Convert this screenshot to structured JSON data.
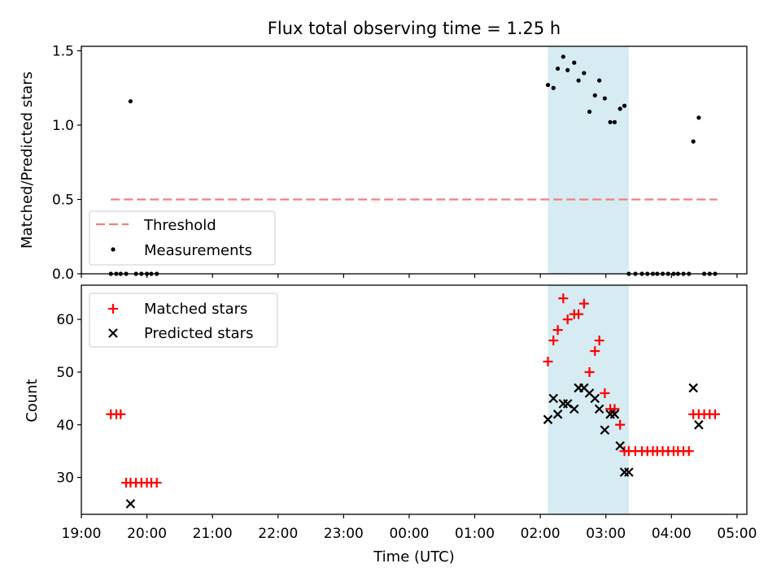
{
  "title": "Flux total observing time = 1.25 h",
  "chart_data": [
    {
      "type": "scatter",
      "panel": "top",
      "ylabel": "Matched/Predicted stars",
      "ylim": [
        0,
        1.53
      ],
      "yticks": [
        0.0,
        0.5,
        1.0,
        1.5
      ],
      "ytick_labels": [
        "0.0",
        "0.5",
        "1.0",
        "1.5"
      ],
      "x_is_time": true,
      "xlim": [
        "19:00",
        "05:09"
      ],
      "highlight_span": [
        "02:07",
        "03:21"
      ],
      "threshold": {
        "name": "Threshold",
        "value": 0.5,
        "x_range": [
          "19:27",
          "04:42"
        ],
        "color": "#f08080"
      },
      "measurements": {
        "name": "Measurements",
        "color": "#000000",
        "x": [
          "19:27",
          "19:32",
          "19:36",
          "19:41",
          "19:45",
          "19:50",
          "19:55",
          "20:00",
          "20:04",
          "20:09",
          "02:07",
          "02:12",
          "02:16",
          "02:21",
          "02:25",
          "02:31",
          "02:35",
          "02:40",
          "02:45",
          "02:50",
          "02:54",
          "02:59",
          "03:04",
          "03:08",
          "03:13",
          "03:17",
          "03:21",
          "03:27",
          "03:33",
          "03:38",
          "03:43",
          "03:47",
          "03:52",
          "03:57",
          "04:02",
          "04:06",
          "04:11",
          "04:16",
          "04:20",
          "04:25",
          "04:30",
          "04:35",
          "04:40"
        ],
        "y": [
          0,
          0,
          0,
          0,
          1.16,
          0,
          0,
          0,
          0,
          0,
          1.27,
          1.25,
          1.38,
          1.46,
          1.37,
          1.42,
          1.3,
          1.35,
          1.09,
          1.2,
          1.3,
          1.18,
          1.02,
          1.02,
          1.11,
          1.13,
          0,
          0,
          0,
          0,
          0,
          0,
          0,
          0,
          0,
          0,
          0,
          0,
          0.89,
          1.05,
          0,
          0,
          0
        ]
      },
      "legend": {
        "location": "lower left",
        "entries": [
          "Threshold",
          "Measurements"
        ]
      }
    },
    {
      "type": "scatter",
      "panel": "bottom",
      "xlabel": "Time (UTC)",
      "ylabel": "Count",
      "ylim": [
        23,
        66.5
      ],
      "yticks": [
        30,
        40,
        50,
        60
      ],
      "ytick_labels": [
        "30",
        "40",
        "50",
        "60"
      ],
      "x_is_time": true,
      "xlim": [
        "19:00",
        "05:09"
      ],
      "xticks": [
        "19:00",
        "20:00",
        "21:00",
        "22:00",
        "23:00",
        "00:00",
        "01:00",
        "02:00",
        "03:00",
        "04:00",
        "05:00"
      ],
      "xtick_labels": [
        "19:00",
        "20:00",
        "21:00",
        "22:00",
        "23:00",
        "00:00",
        "01:00",
        "02:00",
        "03:00",
        "04:00",
        "05:00"
      ],
      "highlight_span": [
        "02:07",
        "03:21"
      ],
      "series": [
        {
          "name": "Matched stars",
          "marker": "+",
          "color": "#ff0000",
          "x": [
            "19:27",
            "19:32",
            "19:36",
            "19:41",
            "19:45",
            "19:50",
            "19:55",
            "20:00",
            "20:04",
            "20:09",
            "02:07",
            "02:12",
            "02:16",
            "02:21",
            "02:25",
            "02:31",
            "02:35",
            "02:40",
            "02:45",
            "02:50",
            "02:54",
            "02:59",
            "03:04",
            "03:08",
            "03:13",
            "03:17",
            "03:21",
            "03:27",
            "03:33",
            "03:38",
            "03:43",
            "03:47",
            "03:52",
            "03:57",
            "04:02",
            "04:06",
            "04:11",
            "04:16",
            "04:20",
            "04:25",
            "04:30",
            "04:35",
            "04:40"
          ],
          "y": [
            42,
            42,
            42,
            29,
            29,
            29,
            29,
            29,
            29,
            29,
            52,
            56,
            58,
            64,
            60,
            61,
            61,
            63,
            50,
            54,
            56,
            46,
            43,
            43,
            40,
            35,
            35,
            35,
            35,
            35,
            35,
            35,
            35,
            35,
            35,
            35,
            35,
            35,
            42,
            42,
            42,
            42,
            42
          ]
        },
        {
          "name": "Predicted stars",
          "marker": "x",
          "color": "#000000",
          "x": [
            "19:45",
            "02:07",
            "02:12",
            "02:16",
            "02:21",
            "02:25",
            "02:31",
            "02:35",
            "02:40",
            "02:45",
            "02:50",
            "02:54",
            "02:59",
            "03:04",
            "03:08",
            "03:13",
            "03:17",
            "03:21",
            "04:20",
            "04:25"
          ],
          "y": [
            25,
            41,
            45,
            42,
            44,
            44,
            43,
            47,
            47,
            46,
            45,
            43,
            39,
            42,
            42,
            36,
            31,
            31,
            47,
            40
          ]
        }
      ],
      "legend": {
        "location": "upper left",
        "entries": [
          "Matched stars",
          "Predicted stars"
        ]
      }
    }
  ]
}
